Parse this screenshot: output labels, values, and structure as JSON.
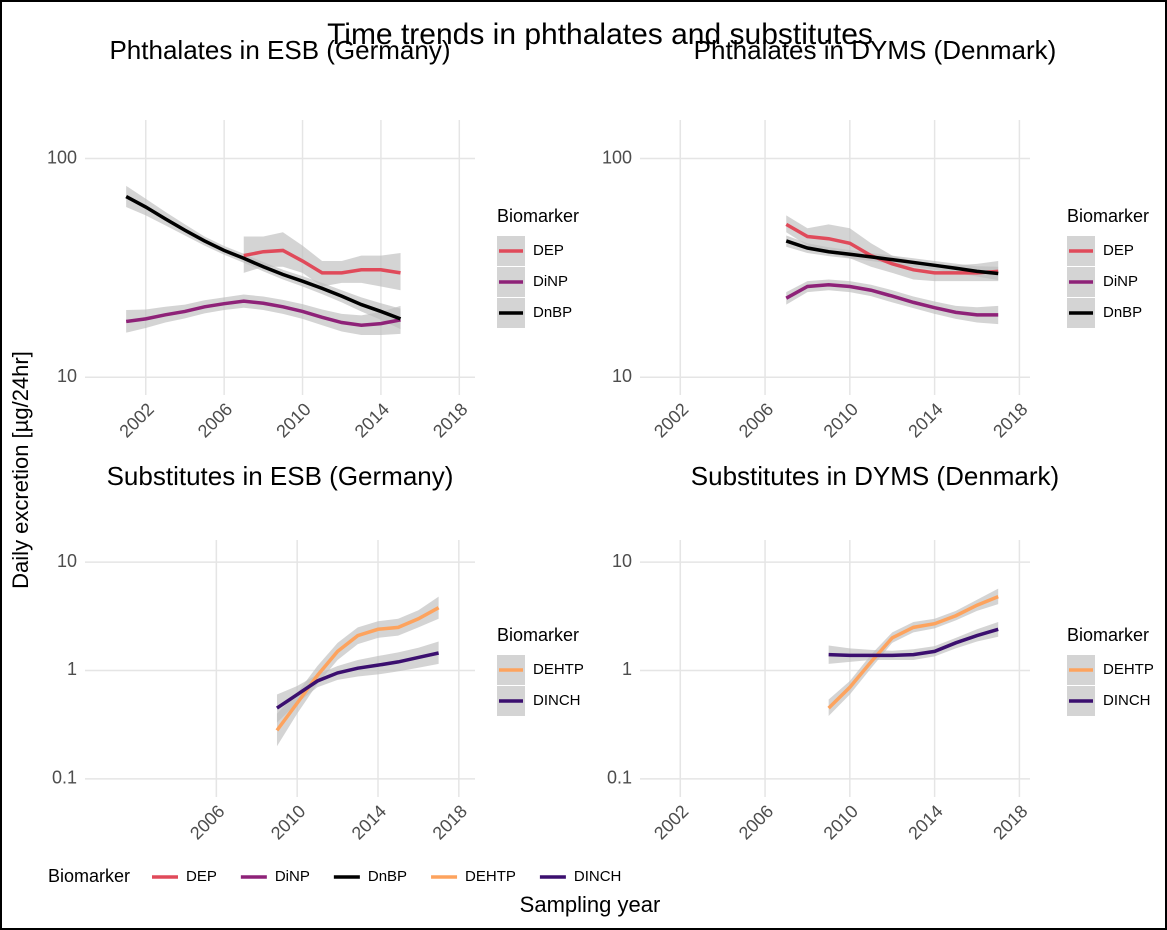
{
  "title": "Time trends in phthalates and substitutes",
  "y_label": "Daily excretion [µg/24hr]",
  "x_label": "Sampling year",
  "legend": {
    "title": "Biomarker",
    "entries": [
      {
        "name": "DEP",
        "color": "#e04a5a"
      },
      {
        "name": "DiNP",
        "color": "#8e2278"
      },
      {
        "name": "DnBP",
        "color": "#000000"
      },
      {
        "name": "DEHTP",
        "color": "#fda35e"
      },
      {
        "name": "DINCH",
        "color": "#3b0f6f"
      }
    ]
  },
  "chart_data": [
    {
      "type": "line",
      "title": "Phthalates in ESB (Germany)",
      "log_y": true,
      "grid": true,
      "legend_title": "Biomarker",
      "xlim": [
        1998.9,
        2018.8
      ],
      "xticks": [
        2002,
        2006,
        2010,
        2014,
        2018
      ],
      "ylim": [
        8.3,
        150
      ],
      "yticks": [
        10,
        100
      ],
      "series": [
        {
          "name": "DEP",
          "color": "#e04a5a",
          "x": [
            2007,
            2008,
            2009,
            2010,
            2011,
            2012,
            2013,
            2014,
            2015
          ],
          "values": [
            36,
            37.5,
            38,
            34,
            30,
            30,
            31,
            31,
            30
          ],
          "lower": [
            30,
            32,
            32,
            30,
            26,
            27,
            27,
            26,
            25
          ],
          "upper": [
            44,
            44,
            46,
            40,
            34,
            34,
            36,
            36,
            37
          ]
        },
        {
          "name": "DiNP",
          "color": "#8e2278",
          "x": [
            2001,
            2002,
            2003,
            2004,
            2005,
            2006,
            2007,
            2008,
            2009,
            2010,
            2011,
            2012,
            2013,
            2014,
            2015
          ],
          "values": [
            18,
            18.5,
            19.3,
            20,
            21,
            21.7,
            22.3,
            21.8,
            21,
            20,
            18.8,
            17.8,
            17.3,
            17.6,
            18.3
          ],
          "lower": [
            16,
            16.8,
            17.8,
            18.6,
            19.6,
            20.3,
            20.8,
            20.3,
            19.5,
            18.5,
            17.3,
            16.2,
            15.6,
            15.6,
            15.8
          ],
          "upper": [
            20.3,
            20.4,
            21,
            21.5,
            22.5,
            23.2,
            23.9,
            23.4,
            22.6,
            21.6,
            20.4,
            19.5,
            19.2,
            19.9,
            21.2
          ]
        },
        {
          "name": "DnBP",
          "color": "#000000",
          "x": [
            2001,
            2002,
            2003,
            2004,
            2005,
            2006,
            2007,
            2008,
            2009,
            2010,
            2011,
            2012,
            2013,
            2014,
            2015
          ],
          "values": [
            67,
            60,
            53,
            47,
            42,
            38,
            35,
            32,
            29.5,
            27.5,
            25.5,
            23.5,
            21.5,
            20,
            18.5
          ],
          "lower": [
            60,
            55,
            49.5,
            44.5,
            40,
            36.3,
            33.4,
            30.5,
            28,
            26,
            24,
            22,
            20,
            18.3,
            16.6
          ],
          "upper": [
            75,
            65.5,
            57,
            50,
            44,
            39.8,
            36.7,
            33.6,
            31,
            29,
            27,
            25,
            23.2,
            21.8,
            20.6
          ]
        }
      ]
    },
    {
      "type": "line",
      "title": "Phthalates in DYMS (Denmark)",
      "log_y": true,
      "grid": true,
      "legend_title": "Biomarker",
      "xlim": [
        2000.1,
        2018.5
      ],
      "xticks": [
        2002,
        2006,
        2010,
        2014,
        2018
      ],
      "ylim": [
        8.3,
        150
      ],
      "yticks": [
        10,
        100
      ],
      "series": [
        {
          "name": "DEP",
          "color": "#e04a5a",
          "x": [
            2007,
            2008,
            2009,
            2010,
            2011,
            2012,
            2013,
            2014,
            2015,
            2016,
            2017
          ],
          "values": [
            50,
            44,
            43,
            41,
            36,
            33,
            31,
            30,
            30,
            30,
            30.5
          ],
          "lower": [
            46,
            40,
            37,
            35,
            32,
            30,
            28,
            27.5,
            27.5,
            27.5,
            27.5
          ],
          "upper": [
            55,
            48,
            50,
            48,
            41,
            36,
            34,
            32.5,
            32.5,
            33,
            34
          ]
        },
        {
          "name": "DiNP",
          "color": "#8e2278",
          "x": [
            2007,
            2008,
            2009,
            2010,
            2011,
            2012,
            2013,
            2014,
            2015,
            2016,
            2017
          ],
          "values": [
            23,
            26,
            26.5,
            26,
            25,
            23.5,
            22,
            20.8,
            19.8,
            19.3,
            19.3
          ],
          "lower": [
            21.5,
            24.5,
            25,
            24.5,
            23.5,
            22,
            20.7,
            19.5,
            18.5,
            17.8,
            17.5
          ],
          "upper": [
            24.5,
            27.5,
            28,
            27.5,
            26.5,
            25,
            23.4,
            22.2,
            21.2,
            20.9,
            21.2
          ]
        },
        {
          "name": "DnBP",
          "color": "#000000",
          "x": [
            2007,
            2008,
            2009,
            2010,
            2011,
            2012,
            2013,
            2014,
            2015,
            2016,
            2017
          ],
          "values": [
            42,
            39,
            37.5,
            36.5,
            35.5,
            34.5,
            33.5,
            32.5,
            31.5,
            30.5,
            29.8
          ],
          "lower": [
            39.5,
            37,
            35.8,
            34.9,
            34,
            33,
            32,
            31,
            30,
            28.9,
            27.8
          ],
          "upper": [
            44.5,
            41,
            39.3,
            38.2,
            37,
            36,
            35,
            34,
            33.1,
            32.2,
            32
          ]
        }
      ]
    },
    {
      "type": "line",
      "title": "Substitutes in ESB (Germany)",
      "log_y": true,
      "grid": true,
      "legend_title": "Biomarker",
      "xlim": [
        1999.5,
        2018.8
      ],
      "xticks": [
        2006,
        2010,
        2014,
        2018
      ],
      "ylim": [
        0.068,
        16
      ],
      "yticks": [
        0.1,
        1,
        10
      ],
      "series": [
        {
          "name": "DEHTP",
          "color": "#fda35e",
          "x": [
            2009,
            2010,
            2011,
            2012,
            2013,
            2014,
            2015,
            2016,
            2017
          ],
          "values": [
            0.28,
            0.5,
            0.9,
            1.5,
            2.1,
            2.4,
            2.5,
            3,
            3.8
          ],
          "lower": [
            0.2,
            0.4,
            0.75,
            1.25,
            1.75,
            2,
            2.1,
            2.5,
            3
          ],
          "upper": [
            0.4,
            0.62,
            1.1,
            1.8,
            2.5,
            2.85,
            3,
            3.6,
            4.8
          ]
        },
        {
          "name": "DINCH",
          "color": "#3b0f6f",
          "x": [
            2009,
            2010,
            2011,
            2012,
            2013,
            2014,
            2015,
            2016,
            2017
          ],
          "values": [
            0.45,
            0.6,
            0.8,
            0.95,
            1.05,
            1.12,
            1.2,
            1.32,
            1.45
          ],
          "lower": [
            0.33,
            0.5,
            0.7,
            0.82,
            0.88,
            0.92,
            0.98,
            1.06,
            1.15
          ],
          "upper": [
            0.6,
            0.72,
            0.92,
            1.1,
            1.25,
            1.36,
            1.47,
            1.62,
            1.85
          ]
        }
      ]
    },
    {
      "type": "line",
      "title": "Substitutes in DYMS (Denmark)",
      "log_y": true,
      "grid": true,
      "legend_title": "Biomarker",
      "xlim": [
        2000.1,
        2018.5
      ],
      "xticks": [
        2002,
        2006,
        2010,
        2014,
        2018
      ],
      "ylim": [
        0.068,
        16
      ],
      "yticks": [
        0.1,
        1,
        10
      ],
      "series": [
        {
          "name": "DEHTP",
          "color": "#fda35e",
          "x": [
            2009,
            2010,
            2011,
            2012,
            2013,
            2014,
            2015,
            2016,
            2017
          ],
          "values": [
            0.45,
            0.7,
            1.2,
            2,
            2.5,
            2.7,
            3.2,
            4,
            4.8
          ],
          "lower": [
            0.38,
            0.6,
            1.05,
            1.8,
            2.25,
            2.45,
            2.9,
            3.55,
            4.1
          ],
          "upper": [
            0.54,
            0.8,
            1.4,
            2.25,
            2.8,
            3,
            3.55,
            4.5,
            5.7
          ]
        },
        {
          "name": "DINCH",
          "color": "#3b0f6f",
          "x": [
            2009,
            2010,
            2011,
            2012,
            2013,
            2014,
            2015,
            2016,
            2017
          ],
          "values": [
            1.4,
            1.38,
            1.38,
            1.38,
            1.4,
            1.5,
            1.8,
            2.1,
            2.4
          ],
          "lower": [
            1.15,
            1.2,
            1.25,
            1.25,
            1.25,
            1.35,
            1.6,
            1.85,
            2.05
          ],
          "upper": [
            1.7,
            1.6,
            1.55,
            1.52,
            1.57,
            1.68,
            2,
            2.4,
            2.8
          ]
        }
      ]
    }
  ]
}
